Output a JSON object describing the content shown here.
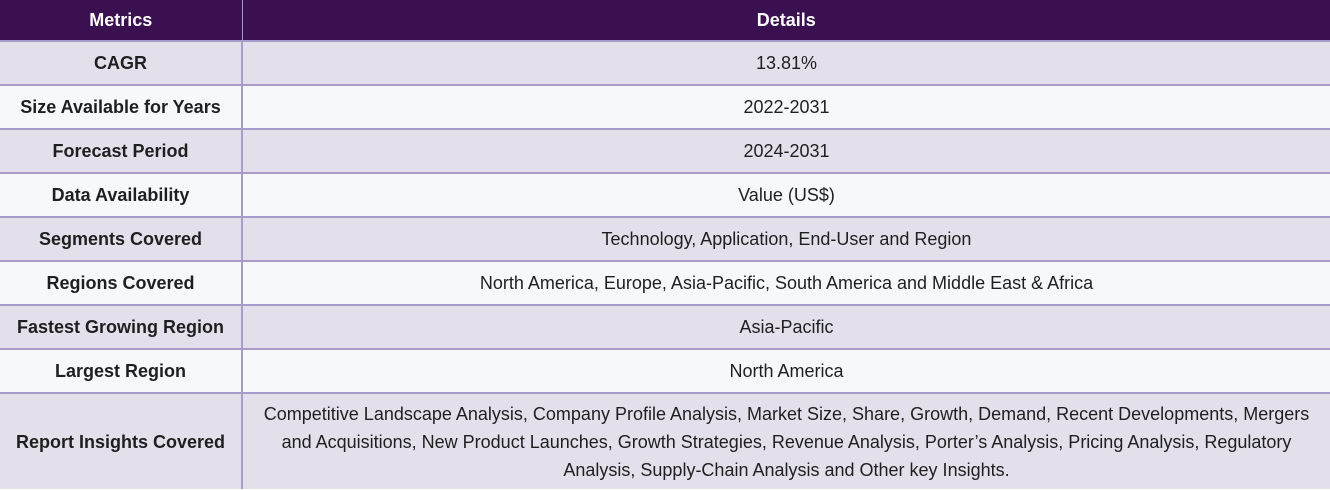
{
  "header": {
    "metrics": "Metrics",
    "details": "Details"
  },
  "rows": [
    {
      "metric": "CAGR",
      "detail": "13.81%"
    },
    {
      "metric": "Size Available for Years",
      "detail": "2022-2031"
    },
    {
      "metric": "Forecast Period",
      "detail": "2024-2031"
    },
    {
      "metric": "Data Availability",
      "detail": "Value (US$)"
    },
    {
      "metric": "Segments Covered",
      "detail": "Technology, Application, End-User and Region"
    },
    {
      "metric": "Regions Covered",
      "detail": "North America, Europe, Asia-Pacific, South America and Middle East & Africa"
    },
    {
      "metric": "Fastest Growing Region",
      "detail": "Asia-Pacific"
    },
    {
      "metric": "Largest Region",
      "detail": "North America"
    },
    {
      "metric": "Report Insights Covered",
      "detail": "Competitive Landscape Analysis, Company Profile Analysis, Market Size, Share, Growth, Demand, Recent Developments, Mergers and Acquisitions, New Product Launches, Growth Strategies, Revenue Analysis, Porter’s Analysis, Pricing Analysis, Regulatory Analysis, Supply-Chain Analysis and Other key Insights."
    }
  ],
  "colors": {
    "header_bg": "#3b1050",
    "row_odd_bg": "#e3e0ec",
    "row_even_bg": "#f5f9fc",
    "border": "#a79bc9"
  }
}
